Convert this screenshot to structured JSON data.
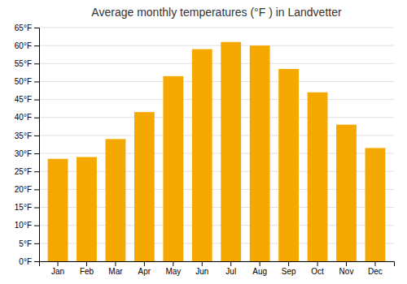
{
  "chart_data": {
    "type": "bar",
    "title": "Average monthly temperatures (°F ) in Landvetter",
    "categories": [
      "Jan",
      "Feb",
      "Mar",
      "Apr",
      "May",
      "Jun",
      "Jul",
      "Aug",
      "Sep",
      "Oct",
      "Nov",
      "Dec"
    ],
    "values": [
      28.5,
      29.0,
      34.0,
      41.5,
      51.5,
      59.0,
      61.0,
      60.0,
      53.5,
      47.0,
      38.0,
      31.5
    ],
    "color": "#F5A800",
    "ylim": [
      0,
      65
    ],
    "yticks": [
      {
        "value": 0,
        "label": "0°F"
      },
      {
        "value": 5,
        "label": "5°F"
      },
      {
        "value": 10,
        "label": "10°F"
      },
      {
        "value": 15,
        "label": "15°F"
      },
      {
        "value": 20,
        "label": "20°F"
      },
      {
        "value": 25,
        "label": "25°F"
      },
      {
        "value": 30,
        "label": "30°F"
      },
      {
        "value": 35,
        "label": "35°F"
      },
      {
        "value": 40,
        "label": "40°F"
      },
      {
        "value": 45,
        "label": "45°F"
      },
      {
        "value": 50,
        "label": "50°F"
      },
      {
        "value": 55,
        "label": "55°F"
      },
      {
        "value": 60,
        "label": "60°F"
      },
      {
        "value": 65,
        "label": "65°F"
      }
    ],
    "grid": true
  }
}
